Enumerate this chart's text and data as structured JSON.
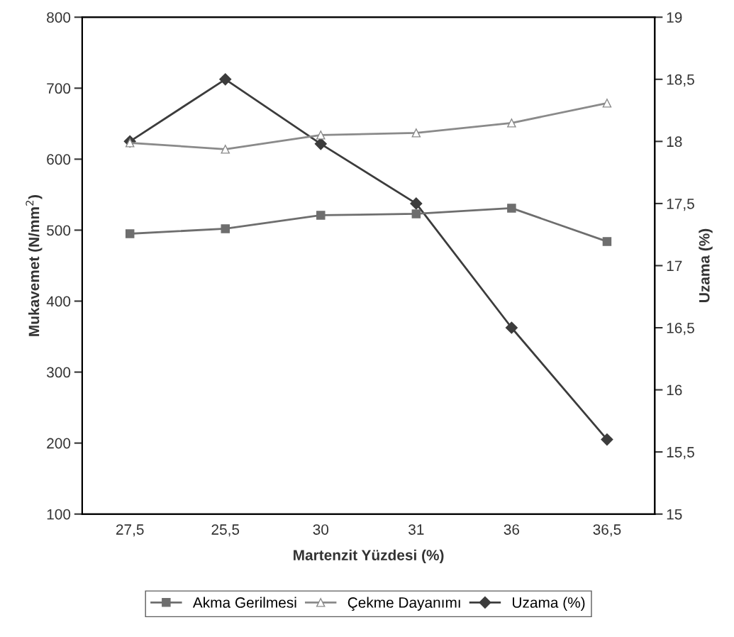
{
  "chart_data": {
    "type": "line",
    "xlabel": "Martenzit Yüzdesi (%)",
    "ylabel": "Mukavemet (N/mm$^{2}$)",
    "y2label": "Uzama (%)",
    "categories": [
      "27,5",
      "25,5",
      "30",
      "31",
      "36",
      "36,5"
    ],
    "ylim": [
      100,
      800
    ],
    "yticks": [
      100,
      200,
      300,
      400,
      500,
      600,
      700,
      800
    ],
    "y2lim": [
      15,
      19
    ],
    "y2ticks": [
      15,
      {
        "value": 15.5,
        "label": "15,5"
      },
      16,
      {
        "value": 16.5,
        "label": "16,5"
      },
      17,
      {
        "value": 17.5,
        "label": "17,5"
      },
      18,
      {
        "value": 18.5,
        "label": "18,5"
      },
      19
    ],
    "grid": false,
    "legend": "bottom",
    "series": [
      {
        "name": "Akma Gerilmesi",
        "color": "#6e6e6e",
        "marker": "square",
        "values": [
          495,
          502,
          521,
          523,
          531,
          484
        ]
      },
      {
        "name": "Çekme Dayanımı",
        "color": "#8a8a8a",
        "marker": "triangle",
        "values": [
          623,
          614,
          634,
          637,
          651,
          679
        ]
      },
      {
        "name": "Uzama (%)",
        "color": "#3c3c3c",
        "marker": "diamond",
        "axis": "y2",
        "values": [
          18.0,
          18.5,
          17.98,
          17.5,
          16.5,
          15.6
        ]
      }
    ]
  }
}
